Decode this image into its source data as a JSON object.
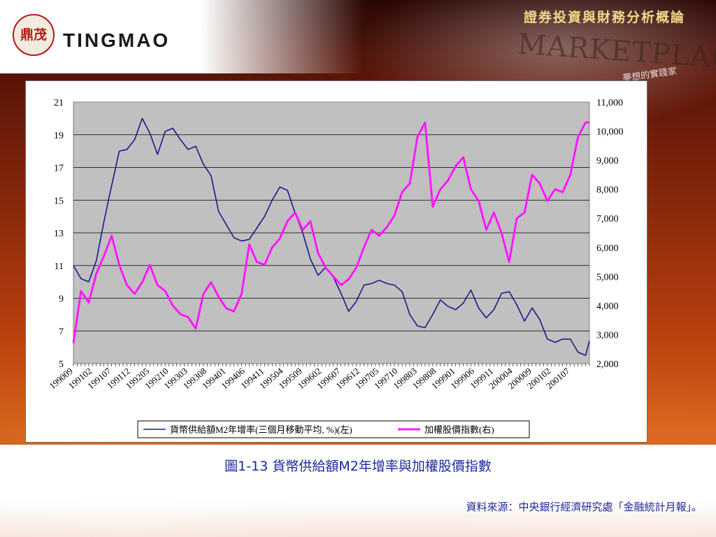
{
  "header": {
    "title": "證券投資與財務分析概論",
    "logo_seal": "鼎茂",
    "logo_text": "TINGMAO",
    "bg_marketplace": "MARKETPLACE",
    "bg_slogan": "夢想的實踐家"
  },
  "caption": "圖1-13 貨幣供給額M2年增率與加權股價指數",
  "source": "資料來源：中央銀行經濟研究處「金融統計月報」。",
  "colors": {
    "series_m2": "#1a1a8c",
    "series_taiex": "#ff1aff",
    "plot_bg": "#c0c0c0",
    "caption_text": "#1b2a9a"
  },
  "chart_data": {
    "type": "line",
    "title": "",
    "x_tick_labels": [
      "199009",
      "199102",
      "199107",
      "199112",
      "199205",
      "199210",
      "199303",
      "199308",
      "199401",
      "199406",
      "199411",
      "199504",
      "199509",
      "199602",
      "199607",
      "199612",
      "199705",
      "199710",
      "199803",
      "199808",
      "199901",
      "199906",
      "199911",
      "200004",
      "200009",
      "200102",
      "200107"
    ],
    "x_tick_label_months": [
      "1990-09",
      "1991-02",
      "1991-07",
      "1991-12",
      "1992-05",
      "1992-10",
      "1993-03",
      "1993-08",
      "1994-01",
      "1994-06",
      "1994-11",
      "1995-04",
      "1995-09",
      "1996-02",
      "1996-07",
      "1996-12",
      "1997-05",
      "1997-10",
      "1998-03",
      "1998-08",
      "1999-01",
      "1999-06",
      "1999-11",
      "2000-04",
      "2000-09",
      "2001-02",
      "2001-07"
    ],
    "x_range": [
      "1990-09",
      "2001-12"
    ],
    "y_left": {
      "min": 5,
      "max": 21,
      "ticks": [
        "5",
        "7",
        "9",
        "11",
        "13",
        "15",
        "17",
        "19",
        "21"
      ]
    },
    "y_right": {
      "min": 2000,
      "max": 11000,
      "ticks": [
        "2,000",
        "3,000",
        "4,000",
        "5,000",
        "6,000",
        "7,000",
        "8,000",
        "9,000",
        "10,000",
        "11,000"
      ]
    },
    "grid": true,
    "legend_position": "bottom",
    "series": [
      {
        "name": "貨幣供給額M2年增率(三個月移動平均, %)(左)",
        "axis": "left",
        "x": [
          "1990-09",
          "1990-11",
          "1991-01",
          "1991-03",
          "1991-05",
          "1991-07",
          "1991-09",
          "1991-11",
          "1992-01",
          "1992-03",
          "1992-05",
          "1992-07",
          "1992-09",
          "1992-11",
          "1993-01",
          "1993-03",
          "1993-05",
          "1993-07",
          "1993-09",
          "1993-11",
          "1994-01",
          "1994-03",
          "1994-05",
          "1994-07",
          "1994-09",
          "1994-11",
          "1995-01",
          "1995-03",
          "1995-05",
          "1995-07",
          "1995-09",
          "1995-11",
          "1996-01",
          "1996-03",
          "1996-05",
          "1996-07",
          "1996-09",
          "1996-11",
          "1997-01",
          "1997-03",
          "1997-05",
          "1997-07",
          "1997-09",
          "1997-11",
          "1998-01",
          "1998-03",
          "1998-05",
          "1998-07",
          "1998-09",
          "1998-11",
          "1999-01",
          "1999-03",
          "1999-05",
          "1999-07",
          "1999-09",
          "1999-11",
          "2000-01",
          "2000-03",
          "2000-05",
          "2000-07",
          "2000-09",
          "2000-11",
          "2001-01",
          "2001-03",
          "2001-05",
          "2001-07",
          "2001-09",
          "2001-11",
          "2001-12"
        ],
        "y": [
          11.0,
          10.2,
          10.0,
          11.3,
          13.7,
          15.9,
          18.0,
          18.1,
          18.7,
          20.0,
          19.1,
          17.8,
          19.2,
          19.4,
          18.7,
          18.1,
          18.3,
          17.2,
          16.5,
          14.3,
          13.5,
          12.7,
          12.5,
          12.6,
          13.3,
          14.0,
          15.0,
          15.8,
          15.6,
          14.2,
          13.0,
          11.4,
          10.4,
          10.9,
          10.3,
          9.3,
          8.2,
          8.8,
          9.8,
          9.9,
          10.1,
          9.9,
          9.8,
          9.4,
          8.0,
          7.3,
          7.2,
          8.0,
          8.9,
          8.5,
          8.3,
          8.7,
          9.5,
          8.4,
          7.8,
          8.3,
          9.3,
          9.4,
          8.6,
          7.6,
          8.4,
          7.7,
          6.5,
          6.3,
          6.5,
          6.5,
          5.7,
          5.5,
          6.4
        ]
      },
      {
        "name": "加權股價指數(右)",
        "axis": "right",
        "x": [
          "1990-09",
          "1990-11",
          "1991-01",
          "1991-03",
          "1991-05",
          "1991-07",
          "1991-09",
          "1991-11",
          "1992-01",
          "1992-03",
          "1992-05",
          "1992-07",
          "1992-09",
          "1992-11",
          "1993-01",
          "1993-03",
          "1993-05",
          "1993-07",
          "1993-09",
          "1993-11",
          "1994-01",
          "1994-03",
          "1994-05",
          "1994-07",
          "1994-09",
          "1994-11",
          "1995-01",
          "1995-03",
          "1995-05",
          "1995-07",
          "1995-09",
          "1995-11",
          "1996-01",
          "1996-03",
          "1996-05",
          "1996-07",
          "1996-09",
          "1996-11",
          "1997-01",
          "1997-03",
          "1997-05",
          "1997-07",
          "1997-09",
          "1997-11",
          "1998-01",
          "1998-03",
          "1998-05",
          "1998-07",
          "1998-09",
          "1998-11",
          "1999-01",
          "1999-03",
          "1999-05",
          "1999-07",
          "1999-09",
          "1999-11",
          "2000-01",
          "2000-03",
          "2000-05",
          "2000-07",
          "2000-09",
          "2000-11",
          "2001-01",
          "2001-03",
          "2001-05",
          "2001-07",
          "2001-09",
          "2001-11",
          "2001-12"
        ],
        "y": [
          2700,
          4500,
          4100,
          5100,
          5700,
          6400,
          5400,
          4700,
          4400,
          4800,
          5400,
          4700,
          4500,
          4000,
          3700,
          3600,
          3200,
          4400,
          4800,
          4300,
          3900,
          3800,
          4400,
          6100,
          5500,
          5400,
          6000,
          6300,
          6900,
          7200,
          6600,
          6900,
          5800,
          5300,
          5000,
          4700,
          4900,
          5300,
          6000,
          6600,
          6400,
          6700,
          7100,
          7900,
          8200,
          9800,
          10300,
          7400,
          8000,
          8300,
          8800,
          9100,
          8000,
          7600,
          6600,
          7200,
          6500,
          5500,
          7000,
          7200,
          8500,
          8200,
          7600,
          8000,
          7900,
          8500,
          9800,
          10300,
          10300
        ]
      }
    ]
  },
  "legend": {
    "m2_label": "貨幣供給額M2年增率(三個月移動平均, %)(左)",
    "taiex_label": "加權股價指數(右)"
  }
}
